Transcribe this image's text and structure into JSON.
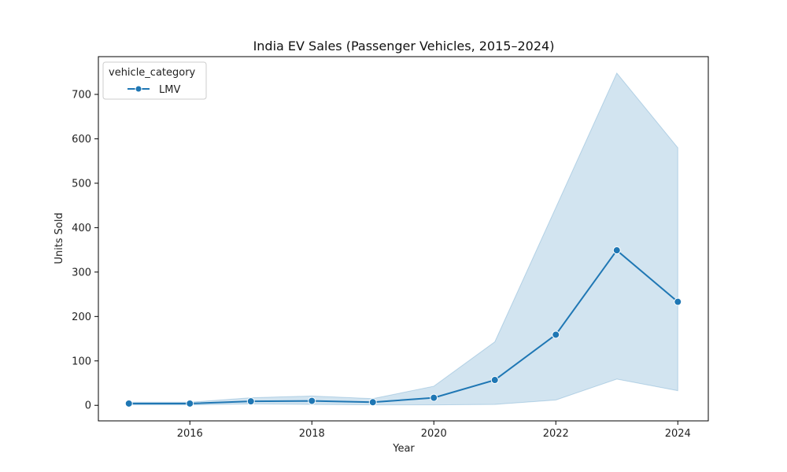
{
  "chart_data": {
    "type": "line",
    "title": "India EV Sales (Passenger Vehicles, 2015–2024)",
    "xlabel": "Year",
    "ylabel": "Units Sold",
    "xlim": [
      2014.5,
      2024.5
    ],
    "ylim": [
      -35,
      785
    ],
    "x_ticks": [
      2016,
      2018,
      2020,
      2022,
      2024
    ],
    "y_ticks": [
      0,
      100,
      200,
      300,
      400,
      500,
      600,
      700
    ],
    "grid": false,
    "legend": {
      "title": "vehicle_category",
      "placement": "top-left"
    },
    "colors": {
      "line": "#1f77b4",
      "band": "#1f77b4"
    },
    "series": [
      {
        "name": "LMV",
        "x": [
          2015,
          2016,
          2017,
          2018,
          2019,
          2020,
          2021,
          2022,
          2023,
          2024
        ],
        "y": [
          4,
          4,
          9,
          10,
          7,
          17,
          57,
          159,
          349,
          233
        ],
        "ci_upper": [
          7,
          7,
          17,
          21,
          15,
          43,
          143,
          445,
          748,
          580
        ],
        "ci_lower": [
          1,
          1,
          3,
          2,
          1,
          1,
          2,
          12,
          59,
          33
        ]
      }
    ]
  }
}
